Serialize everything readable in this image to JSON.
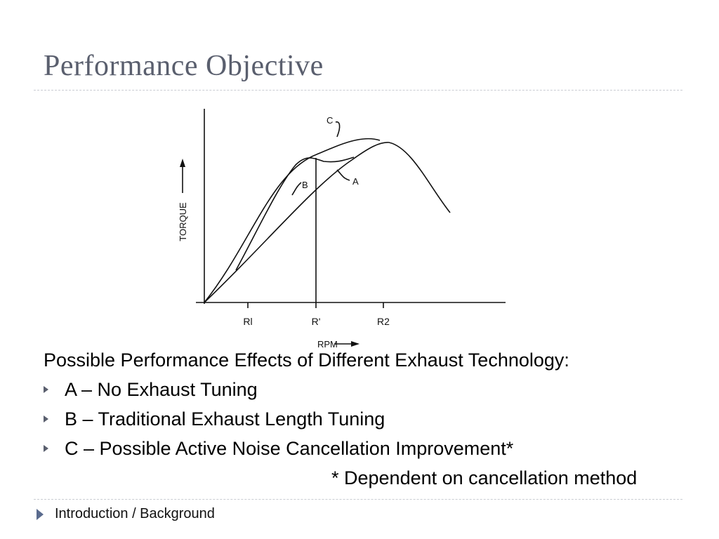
{
  "slide": {
    "title": "Performance Objective"
  },
  "figure": {
    "y_axis_label": "TORQUE",
    "x_axis_label": "RPM",
    "ticks": [
      "Rl",
      "R'",
      "R2"
    ],
    "curve_labels": {
      "a": "A",
      "b": "B",
      "c": "C"
    }
  },
  "body": {
    "intro": "Possible Performance Effects of Different Exhaust Technology:",
    "bullets": [
      "A – No Exhaust Tuning",
      "B – Traditional Exhaust Length Tuning",
      "C – Possible Active Noise Cancellation Improvement*"
    ],
    "footnote": "* Dependent on cancellation method"
  },
  "footer": {
    "section": "Introduction / Background"
  },
  "colors": {
    "title": "#5a5f6e",
    "bullet": "#5a5f6e",
    "rule": "#c9ccd2"
  }
}
